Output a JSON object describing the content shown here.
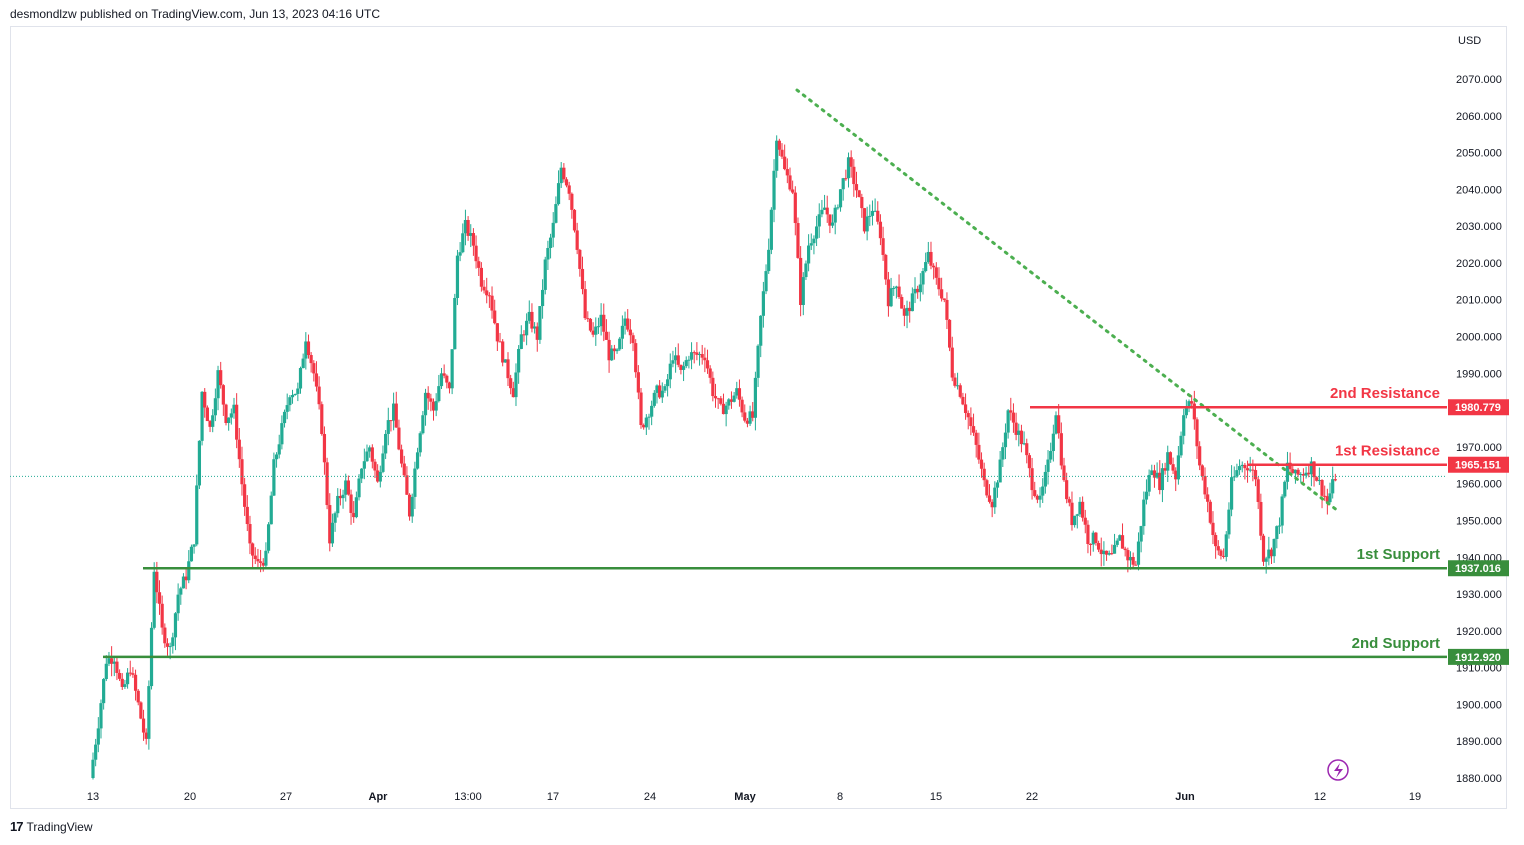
{
  "header": {
    "publish_line": "desmondlzw published on TradingView.com, Jun 13, 2023 04:16 UTC"
  },
  "footer": {
    "brand": "TradingView",
    "logo_text": "17"
  },
  "colors": {
    "up": "#22ab94",
    "down": "#f23645",
    "resistance": "#f23645",
    "support": "#388e3c",
    "trendline": "#4caf50",
    "price_line": "#22ab94",
    "grid": "#ffffff"
  },
  "chart_data": {
    "type": "candlestick",
    "currency_label": "USD",
    "ylim": [
      1880,
      2070
    ],
    "y_ticks": [
      "1880.000",
      "1890.000",
      "1900.000",
      "1910.000",
      "1920.000",
      "1930.000",
      "1940.000",
      "1950.000",
      "1960.000",
      "1970.000",
      "1980.000",
      "1990.000",
      "2000.000",
      "2010.000",
      "2020.000",
      "2030.000",
      "2040.000",
      "2050.000",
      "2060.000",
      "2070.000"
    ],
    "x_ticks": [
      {
        "label": "13",
        "bold": false
      },
      {
        "label": "20",
        "bold": false
      },
      {
        "label": "27",
        "bold": false
      },
      {
        "label": "Apr",
        "bold": true
      },
      {
        "label": "13:00",
        "bold": false
      },
      {
        "label": "17",
        "bold": false
      },
      {
        "label": "24",
        "bold": false
      },
      {
        "label": "May",
        "bold": true
      },
      {
        "label": "8",
        "bold": false
      },
      {
        "label": "15",
        "bold": false
      },
      {
        "label": "22",
        "bold": false
      },
      {
        "label": "Jun",
        "bold": true
      },
      {
        "label": "12",
        "bold": false
      },
      {
        "label": "19",
        "bold": false
      }
    ],
    "levels": [
      {
        "name": "2nd Resistance",
        "value": 1980.779,
        "value_label": "1980.779",
        "kind": "resistance"
      },
      {
        "name": "1st Resistance",
        "value": 1965.151,
        "value_label": "1965.151",
        "kind": "resistance"
      },
      {
        "name": "1st Support",
        "value": 1937.016,
        "value_label": "1937.016",
        "kind": "support"
      },
      {
        "name": "2nd Support",
        "value": 1912.92,
        "value_label": "1912.920",
        "kind": "support"
      }
    ],
    "trendline": {
      "from": {
        "x": "May 4",
        "y": 2067
      },
      "to": {
        "x": "Jun 13",
        "y": 1953
      },
      "style": "dotted"
    },
    "last_price": 1962,
    "path": [
      1880,
      1895,
      1912,
      1913,
      1903,
      1910,
      1900,
      1889,
      1937,
      1920,
      1915,
      1930,
      1935,
      1945,
      1985,
      1975,
      1990,
      1978,
      1980,
      1960,
      1942,
      1938,
      1940,
      1965,
      1975,
      1985,
      1985,
      2000,
      1990,
      1975,
      1945,
      1955,
      1960,
      1950,
      1965,
      1970,
      1960,
      1975,
      1980,
      1965,
      1952,
      1970,
      1985,
      1980,
      1990,
      1985,
      2022,
      2030,
      2025,
      2015,
      2012,
      2000,
      1992,
      1985,
      2000,
      2005,
      2000,
      2020,
      2030,
      2046,
      2040,
      2025,
      2005,
      2000,
      2005,
      1995,
      1995,
      2005,
      2000,
      1975,
      1980,
      1985,
      1985,
      1995,
      1990,
      1995,
      1995,
      1995,
      1985,
      1980,
      1982,
      1985,
      1978,
      1978,
      2005,
      2025,
      2055,
      2045,
      2040,
      2010,
      2025,
      2030,
      2035,
      2030,
      2040,
      2047,
      2040,
      2030,
      2035,
      2028,
      2010,
      2015,
      2005,
      2010,
      2015,
      2022,
      2015,
      2010,
      1990,
      1985,
      1978,
      1970,
      1960,
      1955,
      1965,
      1980,
      1975,
      1970,
      1960,
      1955,
      1965,
      1980,
      1960,
      1950,
      1955,
      1945,
      1945,
      1940,
      1940,
      1945,
      1940,
      1938,
      1955,
      1965,
      1960,
      1968,
      1962,
      1980,
      1982,
      1965,
      1955,
      1942,
      1940,
      1960,
      1965,
      1965,
      1962,
      1940,
      1942,
      1950,
      1965,
      1962,
      1963,
      1965,
      1960,
      1955,
      1962
    ]
  }
}
